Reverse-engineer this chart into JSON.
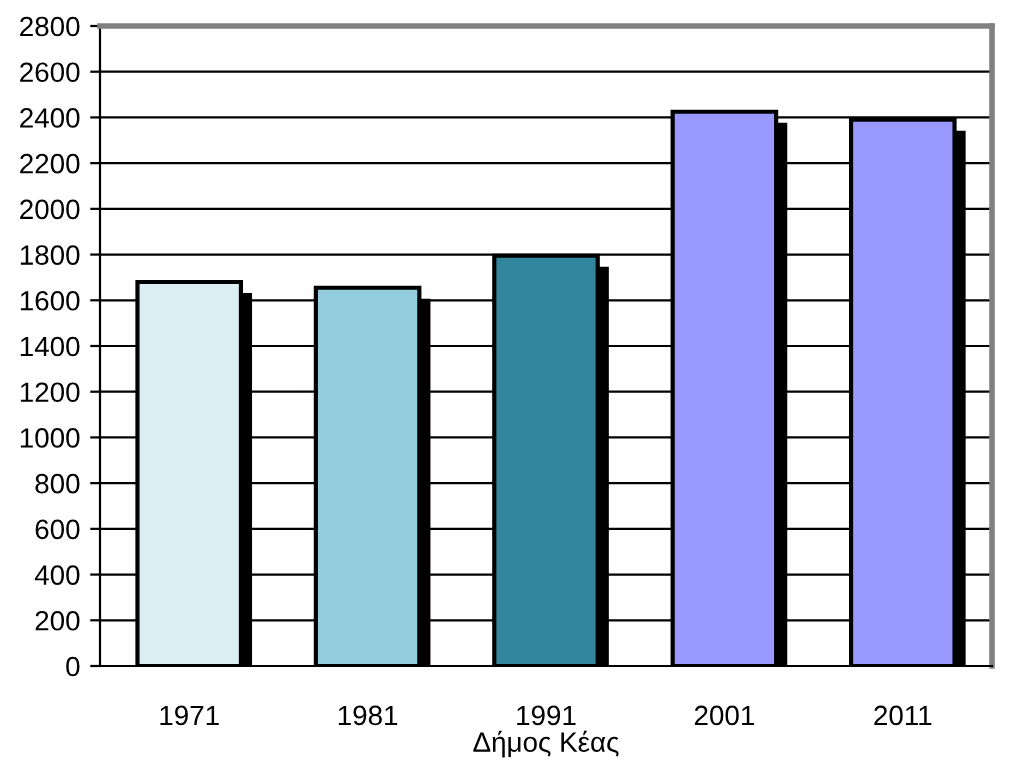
{
  "chart_data": {
    "type": "bar",
    "xlabel": "Δήμος Κέας",
    "categories": [
      "1971",
      "1981",
      "1991",
      "2001",
      "2011"
    ],
    "values": [
      1680,
      1655,
      1795,
      2425,
      2390
    ],
    "colors": [
      "#daeef3",
      "#93cddd",
      "#31859c",
      "#9999ff",
      "#9999ff"
    ],
    "ylim": [
      0,
      2800
    ],
    "yticks": [
      0,
      200,
      400,
      600,
      800,
      1000,
      1200,
      1400,
      1600,
      1800,
      2000,
      2200,
      2400,
      2600,
      2800
    ],
    "grid": "y"
  }
}
